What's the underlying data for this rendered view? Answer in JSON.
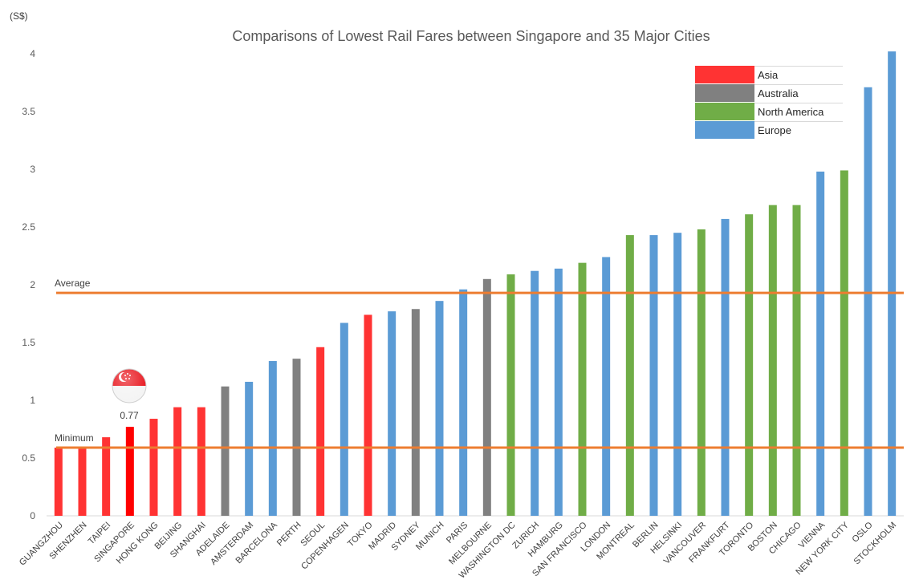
{
  "chart_data": {
    "type": "bar",
    "title": "Comparisons of Lowest Rail Fares between Singapore and 35 Major Cities",
    "ylabel": "(S$)",
    "xlabel": "",
    "ylim": [
      0,
      4
    ],
    "yticks": [
      "0",
      "0.5",
      "1",
      "1.5",
      "2",
      "2.5",
      "3",
      "3.5",
      "4"
    ],
    "grid": false,
    "legend_position": "top-right",
    "region_colors": {
      "Asia": "#ff3333",
      "Australia": "#808080",
      "North America": "#70ad47",
      "Europe": "#5b9bd5"
    },
    "highlight_color": "#ff0000",
    "legend": [
      "Asia",
      "Australia",
      "North America",
      "Europe"
    ],
    "categories": [
      "GUANGZHOU",
      "SHENZHEN",
      "TAIPEI",
      "SINGAPORE",
      "HONG KONG",
      "BEIJING",
      "SHANGHAI",
      "ADELAIDE",
      "AMSTERDAM",
      "BARCELONA",
      "PERTH",
      "SEOUL",
      "COPENHAGEN",
      "TOKYO",
      "MADRID",
      "SYDNEY",
      "MUNICH",
      "PARIS",
      "MELBOURNE",
      "WASHINGTON DC",
      "ZURICH",
      "HAMBURG",
      "SAN FRANCISCO",
      "LONDON",
      "MONTREAL",
      "BERLIN",
      "HELSINKI",
      "VANCOUVER",
      "FRANKFURT",
      "TORONTO",
      "BOSTON",
      "CHICAGO",
      "VIENNA",
      "NEW YORK CITY",
      "OSLO",
      "STOCKHOLM"
    ],
    "values": [
      0.59,
      0.59,
      0.68,
      0.77,
      0.84,
      0.94,
      0.94,
      1.12,
      1.16,
      1.34,
      1.36,
      1.46,
      1.67,
      1.74,
      1.77,
      1.79,
      1.86,
      1.96,
      2.05,
      2.09,
      2.12,
      2.14,
      2.19,
      2.24,
      2.43,
      2.43,
      2.45,
      2.48,
      2.57,
      2.61,
      2.69,
      2.69,
      2.98,
      2.99,
      3.71,
      4.02
    ],
    "regions": [
      "Asia",
      "Asia",
      "Asia",
      "Asia",
      "Asia",
      "Asia",
      "Asia",
      "Australia",
      "Europe",
      "Europe",
      "Australia",
      "Asia",
      "Europe",
      "Asia",
      "Europe",
      "Australia",
      "Europe",
      "Europe",
      "Australia",
      "North America",
      "Europe",
      "Europe",
      "North America",
      "Europe",
      "North America",
      "Europe",
      "Europe",
      "North America",
      "Europe",
      "North America",
      "North America",
      "North America",
      "Europe",
      "North America",
      "Europe",
      "Europe"
    ],
    "highlight": {
      "category": "SINGAPORE",
      "label": "0.77"
    },
    "reference_lines": [
      {
        "name": "Average",
        "value": 1.93,
        "color": "#ed7d31"
      },
      {
        "name": "Minimum",
        "value": 0.59,
        "color": "#ed7d31"
      }
    ]
  }
}
